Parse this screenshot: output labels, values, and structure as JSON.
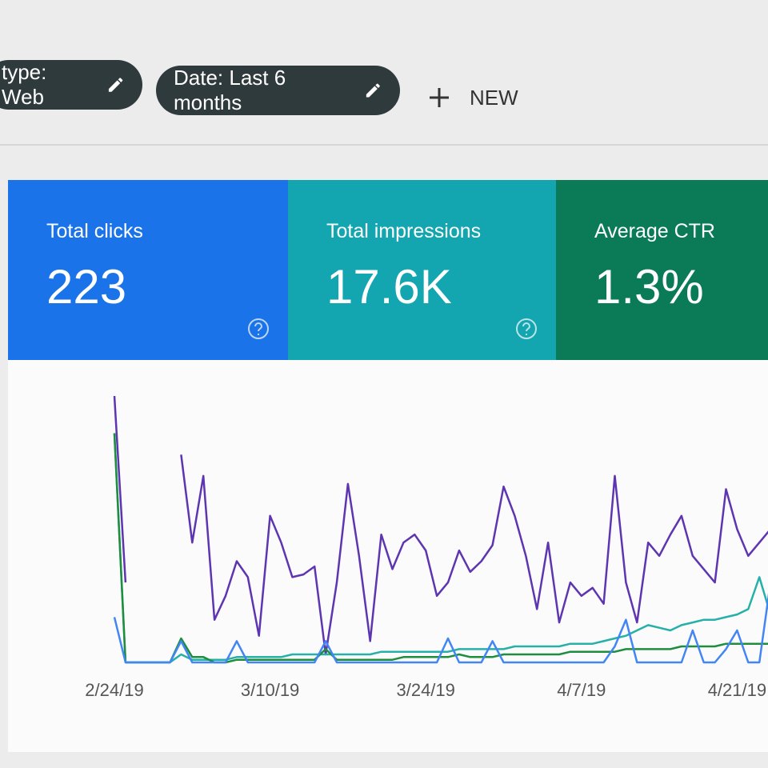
{
  "filters": [
    {
      "label": "type: Web"
    },
    {
      "label": "Date: Last 6 months"
    }
  ],
  "new_button": "NEW",
  "metrics": [
    {
      "label": "Total clicks",
      "value": "223",
      "color": "#1a73e8"
    },
    {
      "label": "Total impressions",
      "value": "17.6K",
      "color": "#13a5b0"
    },
    {
      "label": "Average CTR",
      "value": "1.3%",
      "color": "#0b7b57"
    }
  ],
  "chart_data": {
    "type": "line",
    "categories": [
      "2/24/19",
      null,
      null,
      null,
      null,
      null,
      null,
      null,
      null,
      null,
      null,
      null,
      null,
      null,
      "3/10/19",
      null,
      null,
      null,
      null,
      null,
      null,
      null,
      null,
      null,
      null,
      null,
      null,
      null,
      "3/24/19",
      null,
      null,
      null,
      null,
      null,
      null,
      null,
      null,
      null,
      null,
      null,
      null,
      null,
      "4/7/19",
      null,
      null,
      null,
      null,
      null,
      null,
      null,
      null,
      null,
      null,
      null,
      null,
      null,
      "4/21/19",
      null,
      null,
      null
    ],
    "ylim": [
      0,
      100
    ],
    "series": [
      {
        "color": "#5e35b1",
        "values": [
          100,
          30,
          null,
          null,
          null,
          null,
          78,
          45,
          70,
          16,
          25,
          38,
          32,
          10,
          55,
          45,
          32,
          33,
          36,
          3,
          30,
          67,
          40,
          8,
          48,
          35,
          45,
          48,
          42,
          25,
          30,
          42,
          34,
          38,
          44,
          66,
          55,
          40,
          20,
          45,
          15,
          30,
          25,
          28,
          22,
          70,
          30,
          15,
          45,
          40,
          48,
          55,
          40,
          35,
          30,
          65,
          50,
          40,
          45,
          50
        ]
      },
      {
        "color": "#26b0a8",
        "values": [
          86,
          0,
          0,
          0,
          0,
          0,
          3,
          1,
          1,
          1,
          1,
          2,
          2,
          2,
          2,
          2,
          3,
          3,
          3,
          3,
          3,
          3,
          3,
          3,
          4,
          4,
          4,
          4,
          4,
          4,
          4,
          5,
          5,
          5,
          5,
          5,
          6,
          6,
          6,
          6,
          6,
          7,
          7,
          7,
          8,
          9,
          10,
          12,
          14,
          13,
          12,
          14,
          15,
          16,
          16,
          17,
          18,
          20,
          32,
          18
        ]
      },
      {
        "color": "#1e8e3e",
        "values": [
          86,
          0,
          0,
          0,
          0,
          0,
          9,
          2,
          2,
          0,
          0,
          1,
          1,
          1,
          1,
          1,
          1,
          1,
          1,
          5,
          1,
          1,
          1,
          1,
          1,
          1,
          2,
          2,
          2,
          2,
          2,
          3,
          2,
          2,
          2,
          3,
          3,
          3,
          3,
          3,
          3,
          4,
          4,
          4,
          4,
          4,
          5,
          5,
          5,
          5,
          5,
          6,
          6,
          6,
          6,
          7,
          7,
          7,
          7,
          7
        ]
      },
      {
        "color": "#4285f4",
        "values": [
          17,
          0,
          0,
          0,
          0,
          0,
          8,
          0,
          0,
          0,
          0,
          8,
          0,
          0,
          0,
          0,
          0,
          0,
          0,
          8,
          0,
          0,
          0,
          0,
          0,
          0,
          0,
          0,
          0,
          0,
          9,
          0,
          0,
          0,
          8,
          0,
          0,
          0,
          0,
          0,
          0,
          0,
          0,
          0,
          0,
          6,
          16,
          0,
          0,
          0,
          0,
          0,
          12,
          0,
          0,
          5,
          12,
          0,
          0,
          30
        ]
      }
    ]
  }
}
